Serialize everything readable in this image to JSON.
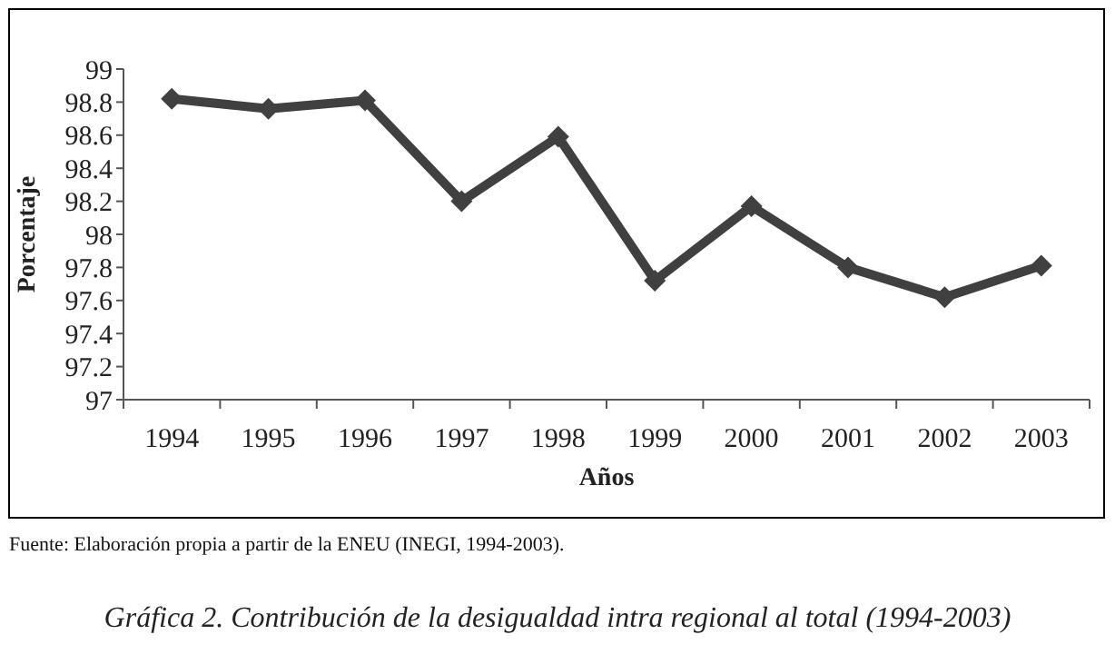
{
  "chart_data": {
    "type": "line",
    "title": "Gráfica 2. Contribución de la desigualdad intra regional al total (1994-2003)",
    "xlabel": "Años",
    "ylabel": "Porcentaje",
    "annotations": [
      "Fuente: Elaboración propia a partir de la ENEU (INEGI, 1994-2003)."
    ],
    "categories": [
      "1994",
      "1995",
      "1996",
      "1997",
      "1998",
      "1999",
      "2000",
      "2001",
      "2002",
      "2003"
    ],
    "series": [
      {
        "color": "#404040",
        "values": [
          98.82,
          98.76,
          98.81,
          98.2,
          98.59,
          97.72,
          98.17,
          97.8,
          97.62,
          97.81
        ]
      }
    ],
    "ylim": [
      97,
      99
    ],
    "yticks": [
      97,
      97.2,
      97.4,
      97.6,
      97.8,
      98,
      98.2,
      98.4,
      98.6,
      98.8,
      99
    ],
    "grid": false,
    "marker": "diamond",
    "line_style": "solid"
  }
}
